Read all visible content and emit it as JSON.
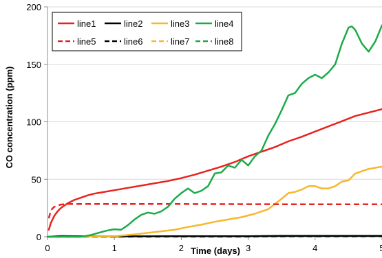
{
  "chart_data": {
    "type": "line",
    "title": "",
    "xlabel": "Time (days)",
    "ylabel": "CO concentration (ppm)",
    "xlim": [
      0,
      5
    ],
    "ylim": [
      0,
      200
    ],
    "xticks": [
      "0",
      "1",
      "2",
      "3",
      "4",
      "5"
    ],
    "yticks": [
      "0",
      "50",
      "100",
      "150",
      "200"
    ],
    "grid": "horizontal",
    "legend_position": "top-left",
    "series": [
      {
        "name": "line1",
        "color": "#e8231f",
        "dash": "solid",
        "x": [
          0.02,
          0.05,
          0.1,
          0.15,
          0.2,
          0.3,
          0.4,
          0.5,
          0.6,
          0.7,
          0.8,
          1.0,
          1.2,
          1.4,
          1.6,
          1.8,
          2.0,
          2.2,
          2.4,
          2.6,
          2.8,
          3.0,
          3.2,
          3.4,
          3.6,
          3.8,
          4.0,
          4.2,
          4.4,
          4.6,
          4.8,
          5.0
        ],
        "y": [
          6,
          12,
          18,
          22,
          25,
          29,
          32,
          34,
          36,
          37.5,
          38.5,
          40.5,
          42.5,
          44.5,
          46.5,
          48.5,
          51,
          54,
          57.5,
          61,
          65,
          70,
          74,
          78,
          83,
          87,
          91.5,
          96,
          100.5,
          105,
          108,
          111
        ]
      },
      {
        "name": "line2",
        "color": "#000000",
        "dash": "solid",
        "x": [
          0.0,
          0.2,
          0.4,
          1.0,
          2.0,
          3.0,
          3.5,
          4.0,
          5.0
        ],
        "y": [
          0,
          0.6,
          0.4,
          0.3,
          0.5,
          0.5,
          0.8,
          0.8,
          0.8
        ]
      },
      {
        "name": "line3",
        "color": "#f7b72b",
        "dash": "solid",
        "x": [
          0.0,
          0.5,
          0.7,
          1.0,
          1.3,
          1.6,
          1.9,
          2.1,
          2.3,
          2.5,
          2.7,
          2.9,
          3.1,
          3.3,
          3.5,
          3.6,
          3.7,
          3.8,
          3.9,
          4.0,
          4.1,
          4.2,
          4.3,
          4.4,
          4.5,
          4.6,
          4.7,
          4.8,
          4.9,
          5.0
        ],
        "y": [
          0,
          0,
          0.3,
          0.5,
          2,
          4,
          6,
          8.5,
          10.5,
          13,
          15,
          17,
          20,
          24,
          33,
          38,
          39,
          41,
          44,
          44,
          42,
          42,
          44,
          48,
          49,
          55,
          57,
          59,
          60,
          61
        ]
      },
      {
        "name": "line4",
        "color": "#1aab48",
        "dash": "solid",
        "x": [
          0.0,
          0.5,
          0.65,
          0.8,
          0.9,
          1.0,
          1.1,
          1.2,
          1.3,
          1.4,
          1.5,
          1.6,
          1.7,
          1.8,
          1.9,
          2.0,
          2.1,
          2.2,
          2.3,
          2.4,
          2.5,
          2.6,
          2.7,
          2.8,
          2.9,
          3.0,
          3.1,
          3.2,
          3.3,
          3.4,
          3.5,
          3.6,
          3.7,
          3.8,
          3.9,
          4.0,
          4.1,
          4.2,
          4.3,
          4.4,
          4.5,
          4.55,
          4.6,
          4.7,
          4.8,
          4.9,
          5.0
        ],
        "y": [
          0,
          0,
          1.5,
          4,
          5.5,
          6.5,
          6,
          10,
          15,
          19,
          21,
          20,
          22,
          26,
          33,
          38,
          42,
          38,
          40,
          44,
          55,
          56,
          62,
          60,
          67,
          62,
          70,
          75,
          88,
          98,
          110,
          123,
          125,
          133,
          138,
          141,
          138,
          143,
          150,
          168,
          182,
          183,
          180,
          168,
          161,
          170,
          184
        ]
      },
      {
        "name": "line5",
        "color": "#e8231f",
        "dash": "dashed",
        "x": [
          0.02,
          0.05,
          0.1,
          0.15,
          0.2,
          0.3,
          0.5,
          1.0,
          2.0,
          3.0,
          4.0,
          5.0
        ],
        "y": [
          16,
          23,
          26,
          27,
          28,
          28.5,
          28.5,
          28.5,
          28.5,
          28.3,
          28.2,
          28.2
        ]
      },
      {
        "name": "line6",
        "color": "#000000",
        "dash": "dashed",
        "x": [
          0.0,
          5.0
        ],
        "y": [
          0,
          0.2
        ]
      },
      {
        "name": "line7",
        "color": "#f7b72b",
        "dash": "dashed",
        "x": [
          0.0,
          5.0
        ],
        "y": [
          0,
          0.2
        ]
      },
      {
        "name": "line8",
        "color": "#1aab48",
        "dash": "dashed",
        "x": [
          0.0,
          5.0
        ],
        "y": [
          0,
          0.1
        ]
      }
    ]
  }
}
